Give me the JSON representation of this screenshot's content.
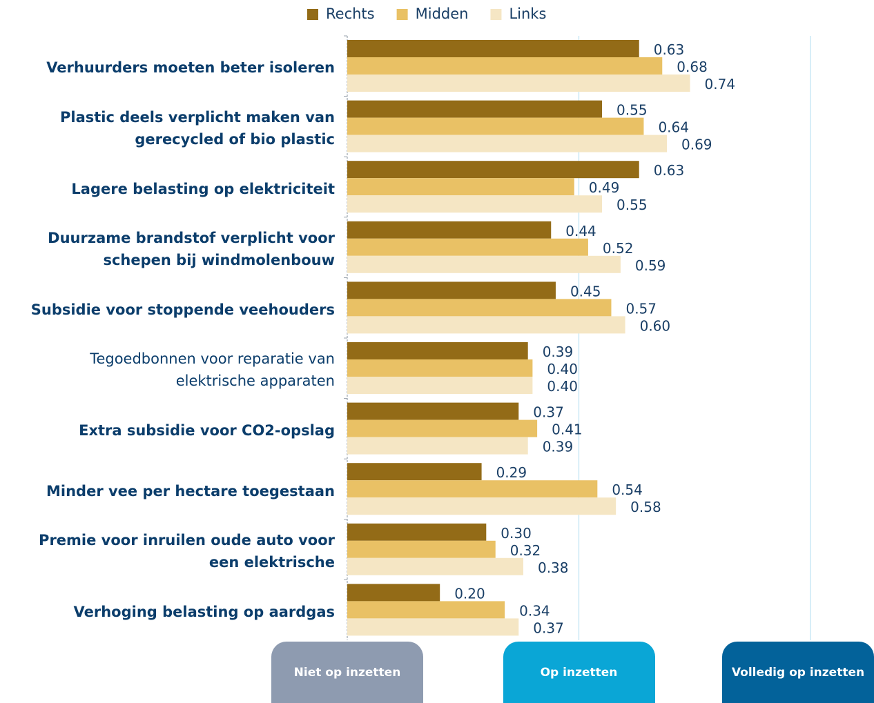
{
  "chart_data": {
    "type": "bar",
    "orientation": "horizontal",
    "categories": [
      "Verhuurders moeten beter isoleren",
      "Plastic deels verplicht maken van gerecycled of bio plastic",
      "Lagere belasting op elektriciteit",
      "Duurzame brandstof verplicht voor schepen bij windmolenbouw",
      "Subsidie voor stoppende veehouders",
      "Tegoedbonnen voor reparatie van elektrische apparaten",
      "Extra subsidie voor CO2-opslag",
      "Minder vee per hectare toegestaan",
      "Premie voor inruilen oude auto voor een elektrische",
      "Verhoging belasting op aardgas"
    ],
    "category_bold": [
      true,
      true,
      true,
      true,
      true,
      false,
      true,
      true,
      true,
      true
    ],
    "series": [
      {
        "name": "Rechts",
        "color": "#936b17",
        "values": [
          0.63,
          0.55,
          0.63,
          0.44,
          0.45,
          0.39,
          0.37,
          0.29,
          0.3,
          0.2
        ],
        "value_labels": [
          "0.63",
          "0.55",
          "0.63",
          "0.44",
          "0.45",
          "0.39",
          "0.37",
          "0.29",
          "0.30",
          "0.20"
        ]
      },
      {
        "name": "Midden",
        "color": "#e9c165",
        "values": [
          0.68,
          0.64,
          0.49,
          0.52,
          0.57,
          0.4,
          0.41,
          0.54,
          0.32,
          0.34
        ],
        "value_labels": [
          "0.68",
          "0.64",
          "0.49",
          "0.52",
          "0.57",
          "0.40",
          "0.41",
          "0.54",
          "0.32",
          "0.34"
        ]
      },
      {
        "name": "Links",
        "color": "#f5e6c4",
        "values": [
          0.74,
          0.69,
          0.55,
          0.59,
          0.6,
          0.4,
          0.39,
          0.58,
          0.38,
          0.37
        ],
        "value_labels": [
          "0.74",
          "0.69",
          "0.55",
          "0.59",
          "0.60",
          "0.40",
          "0.39",
          "0.58",
          "0.38",
          "0.37"
        ]
      }
    ],
    "xlim": [
      0,
      1
    ],
    "xticks": [
      {
        "value": 0,
        "label": "Niet op inzetten"
      },
      {
        "value": 0.5,
        "label": "Op inzetten"
      },
      {
        "value": 1,
        "label": "Volledig op inzetten"
      }
    ],
    "xtick_colors": [
      "#8e9bb0",
      "#0aa6d6",
      "#03629a"
    ],
    "grid": true,
    "legend": "top"
  }
}
